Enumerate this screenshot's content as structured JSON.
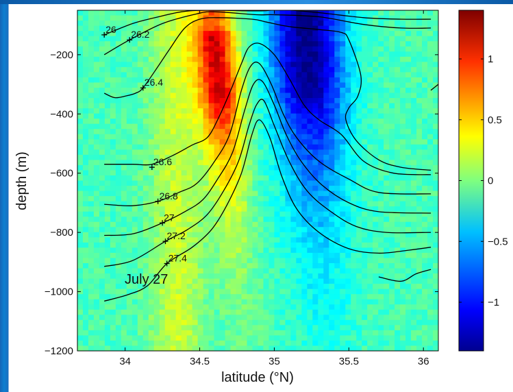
{
  "chart_data": {
    "type": "heatmap",
    "xlabel": "latitude (°N)",
    "ylabel": "depth (m)",
    "xlim": [
      33.68,
      36.1
    ],
    "ylim": [
      -1200,
      -50
    ],
    "xticks": [
      34,
      34.5,
      35,
      35.5,
      36
    ],
    "xtick_labels": [
      "34",
      "34.5",
      "35",
      "35.5",
      "36"
    ],
    "yticks": [
      -1200,
      -1000,
      -800,
      -600,
      -400,
      -200
    ],
    "ytick_labels": [
      "−1200",
      "−1000",
      "−800",
      "−600",
      "−400",
      "−200"
    ],
    "colorbar": {
      "range": [
        -1.4,
        1.4
      ],
      "ticks": [
        -1,
        -0.5,
        0,
        0.5,
        1
      ],
      "tick_labels": [
        "−1",
        "−0.5",
        "0",
        "0.5",
        "1"
      ]
    },
    "annotation": "July 27",
    "contours": [
      {
        "label": "26",
        "label_at": [
          33.86,
          -133
        ],
        "points": [
          [
            33.86,
            -133
          ],
          [
            34.05,
            -95
          ],
          [
            34.2,
            -75
          ],
          [
            34.38,
            -55
          ],
          [
            34.55,
            -50
          ],
          [
            34.9,
            -52
          ],
          [
            35.05,
            -48
          ],
          [
            35.3,
            -58
          ],
          [
            35.6,
            -75
          ],
          [
            35.85,
            -80
          ],
          [
            36.05,
            -80
          ]
        ]
      },
      {
        "label": "26.2",
        "label_at": [
          34.03,
          -150
        ],
        "points": [
          [
            33.86,
            -200
          ],
          [
            34.03,
            -150
          ],
          [
            34.25,
            -95
          ],
          [
            34.48,
            -62
          ],
          [
            34.6,
            -55
          ],
          [
            34.88,
            -65
          ],
          [
            35.0,
            -65
          ],
          [
            35.3,
            -72
          ],
          [
            35.6,
            -98
          ],
          [
            35.85,
            -110
          ],
          [
            36.05,
            -110
          ]
        ]
      },
      {
        "label": "26.4",
        "label_at": [
          34.12,
          -312
        ],
        "points": [
          [
            33.86,
            -330
          ],
          [
            33.93,
            -345
          ],
          [
            34.0,
            -340
          ],
          [
            34.07,
            -330
          ],
          [
            34.12,
            -312
          ],
          [
            34.22,
            -240
          ],
          [
            34.3,
            -180
          ],
          [
            34.4,
            -110
          ],
          [
            34.5,
            -80
          ],
          [
            34.63,
            -75
          ],
          [
            34.85,
            -80
          ],
          [
            34.95,
            -90
          ],
          [
            35.1,
            -105
          ],
          [
            35.3,
            -115
          ],
          [
            35.45,
            -125
          ],
          [
            35.5,
            -150
          ],
          [
            35.58,
            -270
          ],
          [
            35.56,
            -340
          ],
          [
            35.5,
            -380
          ],
          [
            35.48,
            -420
          ],
          [
            35.55,
            -490
          ],
          [
            35.7,
            -555
          ],
          [
            35.85,
            -580
          ],
          [
            36.05,
            -590
          ]
        ]
      },
      {
        "label": "26.6",
        "label_at": [
          34.18,
          -580
        ],
        "points": [
          [
            33.86,
            -570
          ],
          [
            34.05,
            -570
          ],
          [
            34.18,
            -570
          ],
          [
            34.32,
            -540
          ],
          [
            34.45,
            -505
          ],
          [
            34.55,
            -480
          ],
          [
            34.62,
            -420
          ],
          [
            34.7,
            -330
          ],
          [
            34.78,
            -230
          ],
          [
            34.83,
            -175
          ],
          [
            34.9,
            -162
          ],
          [
            35.0,
            -200
          ],
          [
            35.1,
            -280
          ],
          [
            35.2,
            -370
          ],
          [
            35.3,
            -420
          ],
          [
            35.45,
            -470
          ],
          [
            35.6,
            -560
          ],
          [
            35.8,
            -600
          ],
          [
            36.05,
            -605
          ]
        ]
      },
      {
        "label": "26.8",
        "label_at": [
          34.22,
          -695
        ],
        "points": [
          [
            33.86,
            -705
          ],
          [
            34.05,
            -710
          ],
          [
            34.22,
            -695
          ],
          [
            34.36,
            -665
          ],
          [
            34.48,
            -635
          ],
          [
            34.6,
            -560
          ],
          [
            34.7,
            -470
          ],
          [
            34.78,
            -320
          ],
          [
            34.84,
            -240
          ],
          [
            34.9,
            -230
          ],
          [
            34.98,
            -300
          ],
          [
            35.06,
            -400
          ],
          [
            35.15,
            -480
          ],
          [
            35.3,
            -560
          ],
          [
            35.5,
            -620
          ],
          [
            35.7,
            -665
          ],
          [
            36.05,
            -670
          ]
        ]
      },
      {
        "label": "27",
        "label_at": [
          34.25,
          -768
        ],
        "points": [
          [
            33.86,
            -810
          ],
          [
            34.05,
            -805
          ],
          [
            34.25,
            -768
          ],
          [
            34.4,
            -730
          ],
          [
            34.52,
            -690
          ],
          [
            34.62,
            -620
          ],
          [
            34.72,
            -530
          ],
          [
            34.8,
            -390
          ],
          [
            34.86,
            -300
          ],
          [
            34.92,
            -290
          ],
          [
            35.0,
            -370
          ],
          [
            35.08,
            -470
          ],
          [
            35.18,
            -560
          ],
          [
            35.32,
            -640
          ],
          [
            35.5,
            -700
          ],
          [
            35.7,
            -730
          ],
          [
            36.05,
            -735
          ]
        ]
      },
      {
        "label": "27.2",
        "label_at": [
          34.27,
          -830
        ],
        "points": [
          [
            33.86,
            -915
          ],
          [
            34.05,
            -895
          ],
          [
            34.27,
            -830
          ],
          [
            34.42,
            -790
          ],
          [
            34.55,
            -740
          ],
          [
            34.66,
            -660
          ],
          [
            34.76,
            -560
          ],
          [
            34.83,
            -440
          ],
          [
            34.88,
            -370
          ],
          [
            34.93,
            -355
          ],
          [
            35.0,
            -440
          ],
          [
            35.1,
            -560
          ],
          [
            35.22,
            -660
          ],
          [
            35.38,
            -730
          ],
          [
            35.55,
            -780
          ],
          [
            35.75,
            -800
          ],
          [
            36.05,
            -800
          ]
        ]
      },
      {
        "label": "27.4",
        "label_at": [
          34.28,
          -905
        ],
        "points": [
          [
            33.86,
            -1032
          ],
          [
            34.02,
            -1010
          ],
          [
            34.15,
            -980
          ],
          [
            34.28,
            -905
          ],
          [
            34.45,
            -850
          ],
          [
            34.58,
            -790
          ],
          [
            34.68,
            -710
          ],
          [
            34.78,
            -600
          ],
          [
            34.85,
            -470
          ],
          [
            34.9,
            -420
          ],
          [
            34.97,
            -480
          ],
          [
            35.05,
            -610
          ],
          [
            35.15,
            -720
          ],
          [
            35.3,
            -800
          ],
          [
            35.5,
            -855
          ],
          [
            35.7,
            -870
          ],
          [
            35.9,
            -860
          ],
          [
            36.05,
            -850
          ]
        ]
      },
      {
        "label": "",
        "label_at": null,
        "points": [
          [
            35.7,
            -950
          ],
          [
            35.85,
            -965
          ],
          [
            35.95,
            -940
          ],
          [
            36.05,
            -925
          ]
        ]
      },
      {
        "label": "",
        "label_at": null,
        "points": [
          [
            36.05,
            -320
          ],
          [
            36.1,
            -300
          ]
        ]
      }
    ]
  }
}
